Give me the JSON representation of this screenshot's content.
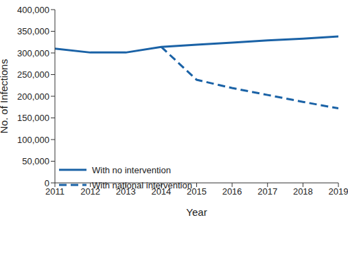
{
  "chart_data": {
    "type": "line",
    "x_label": "Year",
    "y_label": "No. of Infections",
    "x": [
      2011,
      2012,
      2013,
      2014,
      2015,
      2016,
      2017,
      2018,
      2019
    ],
    "xlim": [
      2011,
      2019
    ],
    "xticks": [
      2011,
      2012,
      2013,
      2014,
      2015,
      2016,
      2017,
      2018,
      2019
    ],
    "ylim": [
      0,
      400000
    ],
    "yticks": [
      0,
      {
        "value": 50000,
        "label": "50,000"
      },
      {
        "value": 100000,
        "label": "100,000"
      },
      {
        "value": 150000,
        "label": "150,000"
      },
      {
        "value": 200000,
        "label": "200,000"
      },
      {
        "value": 250000,
        "label": "250,000"
      },
      {
        "value": 300000,
        "label": "300,000"
      },
      {
        "value": 350000,
        "label": "350,000"
      },
      {
        "value": 400000,
        "label": "400,000"
      }
    ],
    "grid": false,
    "legend": "lower left",
    "series": [
      {
        "name": "With no intervention",
        "color": "#1a62a6",
        "line_style": "solid",
        "values": [
          310000,
          301000,
          301000,
          314000,
          319000,
          324000,
          329000,
          333000,
          338000
        ]
      },
      {
        "name": "With national intervention",
        "color": "#1a62a6",
        "line_style": "dashed",
        "values": [
          null,
          null,
          null,
          314000,
          238000,
          219000,
          203000,
          187000,
          172000
        ]
      }
    ]
  }
}
